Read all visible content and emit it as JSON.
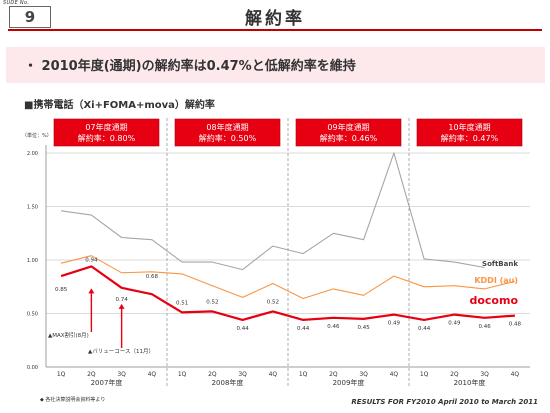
{
  "header": {
    "slide_no_label": "SUDE No.",
    "page_number": "9",
    "title": "解約率"
  },
  "bullet": "・ 2010年度(通期)の解約率は0.47%と低解約率を維持",
  "chart_heading": "■携帯電話（Xi+FOMA+mova）解約率",
  "chart_data": {
    "type": "line",
    "unit_label": "（単位：%）",
    "y_ticks": [
      "0.00",
      "0.50",
      "1.00",
      "1.50",
      "2.00"
    ],
    "ylim": [
      0,
      2.0
    ],
    "quarters": [
      "1Q",
      "2Q",
      "3Q",
      "4Q",
      "1Q",
      "2Q",
      "3Q",
      "4Q",
      "1Q",
      "2Q",
      "3Q",
      "4Q",
      "1Q",
      "2Q",
      "3Q",
      "4Q"
    ],
    "years": [
      "2007年度",
      "2008年度",
      "2009年度",
      "2010年度"
    ],
    "fiscal_banners": [
      {
        "year": "07年度通期",
        "rate": "解約率：0.80%"
      },
      {
        "year": "08年度通期",
        "rate": "解約率：0.50%"
      },
      {
        "year": "09年度通期",
        "rate": "解約率：0.46%"
      },
      {
        "year": "10年度通期",
        "rate": "解約率：0.47%"
      }
    ],
    "series": [
      {
        "name": "SoftBank",
        "color": "#a6a6a6",
        "values": [
          1.46,
          1.42,
          1.21,
          1.19,
          0.98,
          0.98,
          0.91,
          1.13,
          1.06,
          1.25,
          1.19,
          2.0,
          1.01,
          0.98,
          0.93,
          null
        ]
      },
      {
        "name": "KDDI (au)",
        "color": "#f79646",
        "values": [
          0.97,
          1.04,
          0.88,
          0.89,
          0.87,
          0.76,
          0.65,
          0.78,
          0.64,
          0.73,
          0.67,
          0.85,
          0.75,
          0.76,
          0.73,
          0.8
        ]
      },
      {
        "name": "docomo",
        "color": "#e60012",
        "values": [
          0.85,
          0.94,
          0.74,
          0.68,
          0.51,
          0.52,
          0.44,
          0.52,
          0.44,
          0.46,
          0.45,
          0.49,
          0.44,
          0.49,
          0.46,
          0.48
        ]
      }
    ],
    "docomo_labels": [
      "0.85",
      "0.94",
      "0.74",
      "0.68",
      "0.51",
      "0.52",
      "0.44",
      "0.52",
      "0.44",
      "0.46",
      "0.45",
      "0.49",
      "0.44",
      "0.49",
      "0.46",
      "0.48"
    ],
    "annotations": [
      {
        "text": "▲MAX割引(8月)",
        "quarter_index": 1
      },
      {
        "text": "▲バリューコース（11月）",
        "quarter_index": 2
      }
    ]
  },
  "footer_note": "◆ 各社決算説明会資料等より",
  "footer_brand": "RESULTS FOR FY2010   April 2010 to March 2011"
}
